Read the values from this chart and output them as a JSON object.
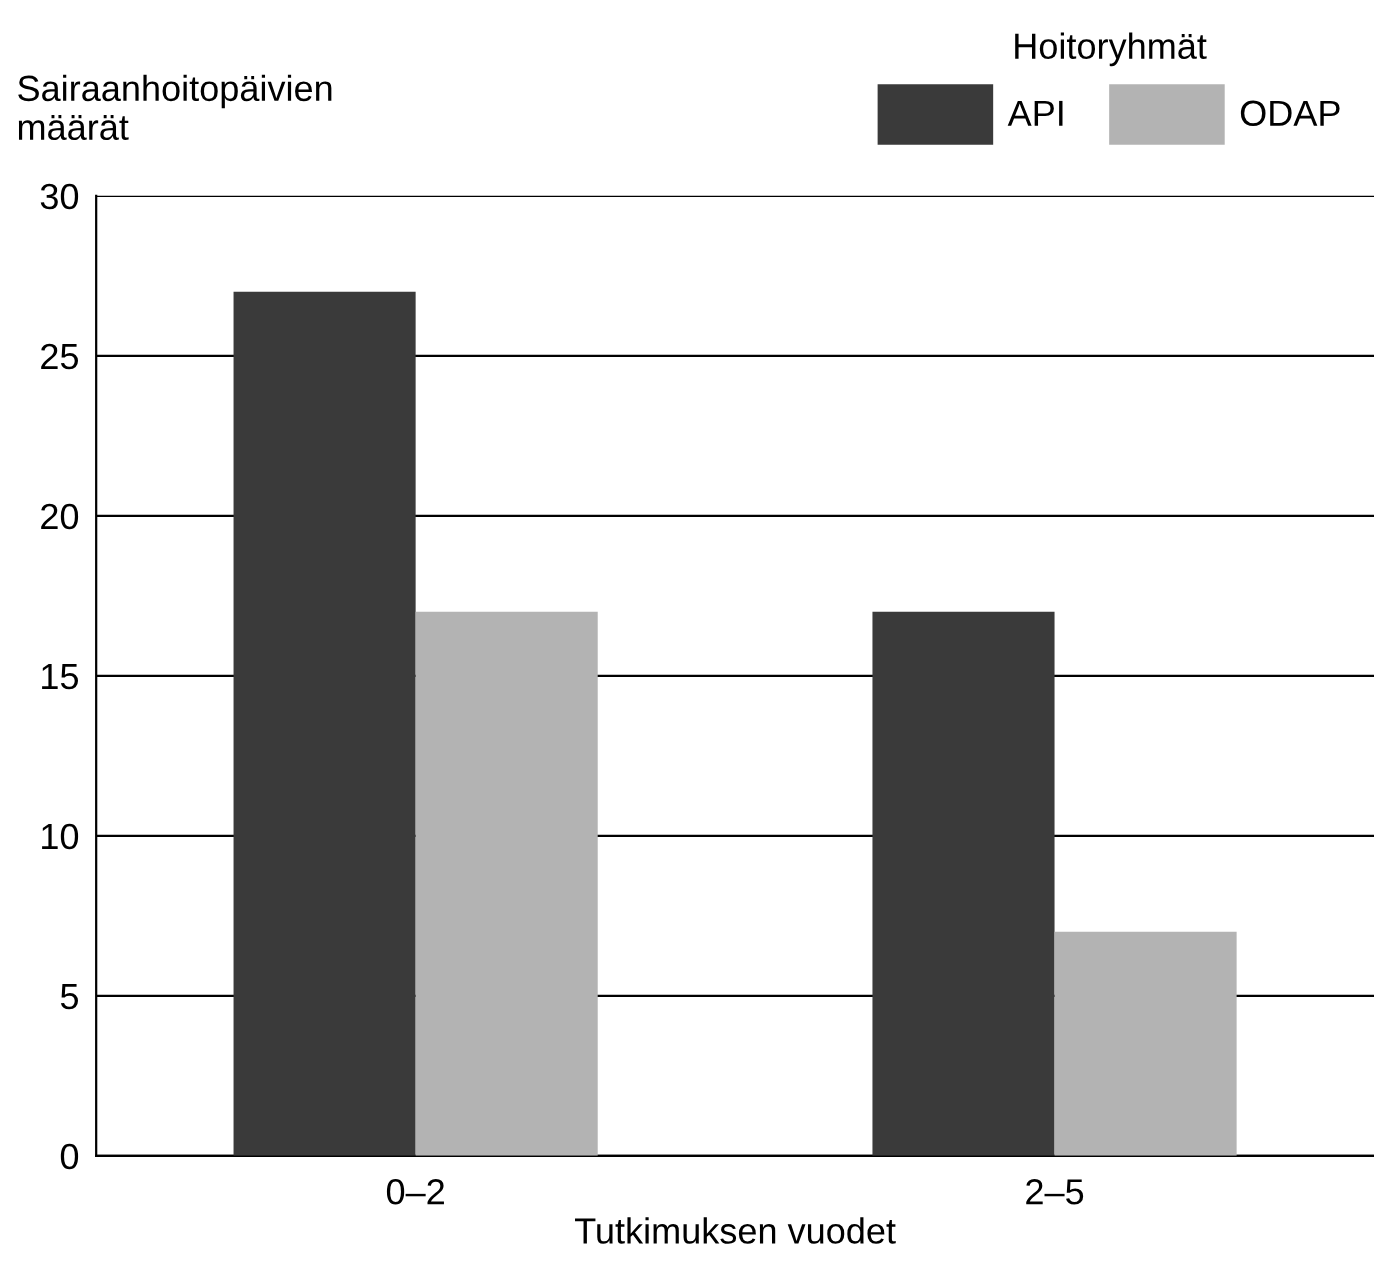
{
  "chart_data": {
    "type": "bar",
    "ylabel": "Sairaanhoitopäivien\nmäärät",
    "xlabel": "Tutkimuksen vuodet",
    "legend_title": "Hoitoryhmät",
    "categories": [
      "0–2",
      "2–5"
    ],
    "series": [
      {
        "name": "API",
        "color": "#3a3a3a",
        "values": [
          27,
          17
        ]
      },
      {
        "name": "ODAP",
        "color": "#b3b3b3",
        "values": [
          17,
          7
        ]
      }
    ],
    "ylim": [
      0,
      30
    ],
    "yticks": [
      0,
      5,
      10,
      15,
      20,
      25,
      30
    ],
    "grid": "y",
    "legend": "top right"
  }
}
